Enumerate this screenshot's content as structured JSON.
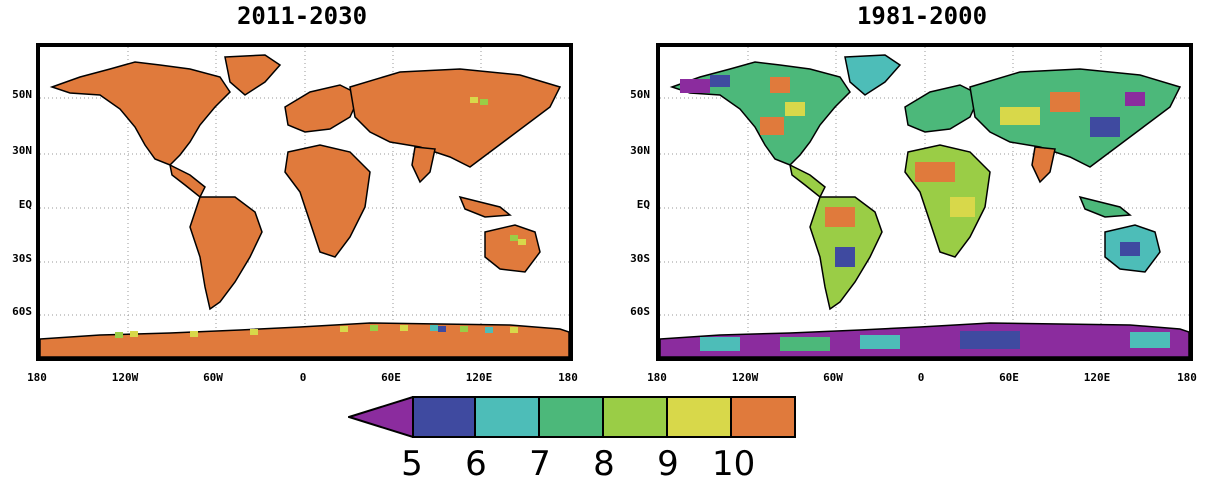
{
  "panels": [
    {
      "title": "2011-2030",
      "dominant_class": "10"
    },
    {
      "title": "1981-2000",
      "dominant_class": "mixed"
    }
  ],
  "lat_labels": [
    "50N",
    "30N",
    "EQ",
    "30S",
    "60S"
  ],
  "lon_labels": [
    "180",
    "120W",
    "60W",
    "0",
    "60E",
    "120E",
    "180"
  ],
  "colorbar": {
    "under_color": "#8b2c9e",
    "classes": [
      {
        "label": "5",
        "color": "#3f4aa0"
      },
      {
        "label": "6",
        "color": "#4dbdb8"
      },
      {
        "label": "7",
        "color": "#4cb87a"
      },
      {
        "label": "8",
        "color": "#9acd46"
      },
      {
        "label": "9",
        "color": "#d8d84a"
      },
      {
        "label": "10",
        "color": "#e07a3c"
      }
    ]
  }
}
